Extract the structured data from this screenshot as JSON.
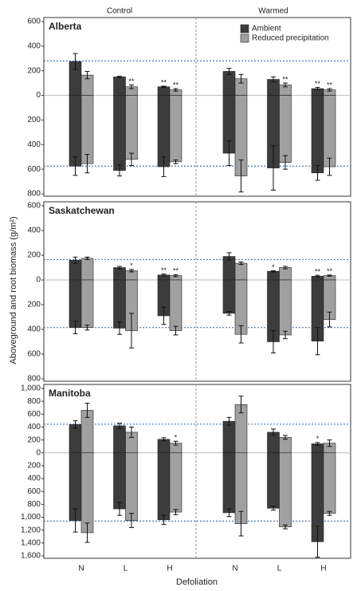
{
  "chart_data": {
    "type": "bar",
    "facets": [
      "Control",
      "Warmed"
    ],
    "categories": [
      "N",
      "L",
      "H"
    ],
    "xlabel": "Defoliation",
    "ylabel": "Aboveground  and root biomass (g/m²)",
    "legend_loc": "upper right",
    "series": [
      {
        "name": "Ambient",
        "color": "#3c3c3c"
      },
      {
        "name": "Reduced precipitation",
        "color": "#a0a0a0"
      }
    ],
    "ref_color": "#4a7ebb",
    "panels": [
      {
        "title": "Alberta",
        "ylim": [
          -800,
          600
        ],
        "yticks": [
          600,
          400,
          200,
          0,
          {
            "value": -200,
            "label": "200"
          },
          {
            "value": -400,
            "label": "400"
          },
          {
            "value": -600,
            "label": "600"
          },
          {
            "value": -800,
            "label": "800"
          }
        ],
        "ref_lines": [
          280,
          -575
        ],
        "values": [
          [
            {
              "above": [
                275,
                150,
                70
              ],
              "above_err": [
                65,
                5,
                5
              ],
              "root": [
                -575,
                -610,
                -580
              ],
              "root_err": [
                75,
                45,
                80
              ],
              "sig": [
                null,
                null,
                "**"
              ]
            },
            {
              "above": [
                165,
                70,
                45
              ],
              "above_err": [
                30,
                15,
                10
              ],
              "root": [
                -555,
                -520,
                -540
              ],
              "root_err": [
                75,
                50,
                15
              ],
              "sig": [
                null,
                "**",
                "**"
              ]
            }
          ],
          [
            {
              "above": [
                195,
                130,
                55
              ],
              "above_err": [
                25,
                20,
                10
              ],
              "root": [
                -470,
                -590,
                -630
              ],
              "root_err": [
                100,
                180,
                60
              ],
              "sig": [
                null,
                null,
                "**"
              ]
            },
            {
              "above": [
                135,
                85,
                45
              ],
              "above_err": [
                35,
                15,
                10
              ],
              "root": [
                -655,
                -545,
                -580
              ],
              "root_err": [
                130,
                55,
                70
              ],
              "sig": [
                null,
                "**",
                "**"
              ]
            }
          ]
        ]
      },
      {
        "title": "Saskatchewan",
        "ylim": [
          -800,
          600
        ],
        "yticks": [
          600,
          400,
          200,
          0,
          {
            "value": -200,
            "label": "200"
          },
          {
            "value": -400,
            "label": "400"
          },
          {
            "value": -600,
            "label": "600"
          },
          {
            "value": -800,
            "label": "800"
          }
        ],
        "ref_lines": [
          165,
          -385
        ],
        "values": [
          [
            {
              "above": [
                160,
                100,
                40
              ],
              "above_err": [
                25,
                10,
                8
              ],
              "root": [
                -385,
                -390,
                -290
              ],
              "root_err": [
                50,
                50,
                70
              ],
              "sig": [
                null,
                null,
                "**"
              ]
            },
            {
              "above": [
                175,
                75,
                35
              ],
              "above_err": [
                10,
                10,
                8
              ],
              "root": [
                -385,
                -410,
                -410
              ],
              "root_err": [
                20,
                140,
                35
              ],
              "sig": [
                null,
                "*",
                "**"
              ]
            }
          ],
          [
            {
              "above": [
                190,
                70,
                30
              ],
              "above_err": [
                30,
                5,
                8
              ],
              "root": [
                -270,
                -500,
                -495
              ],
              "root_err": [
                15,
                90,
                110
              ],
              "sig": [
                null,
                "*",
                "**"
              ]
            },
            {
              "above": [
                135,
                100,
                35
              ],
              "above_err": [
                10,
                10,
                5
              ],
              "root": [
                -440,
                -445,
                -320
              ],
              "root_err": [
                70,
                30,
                60
              ],
              "sig": [
                null,
                null,
                "**"
              ]
            }
          ]
        ]
      },
      {
        "title": "Manitoba",
        "ylim": [
          -1600,
          1000
        ],
        "yticks": [
          {
            "value": 1000,
            "label": "1,000"
          },
          800,
          600,
          400,
          200,
          0,
          {
            "value": -200,
            "label": "200"
          },
          {
            "value": -400,
            "label": "400"
          },
          {
            "value": -600,
            "label": "600"
          },
          {
            "value": -800,
            "label": "800"
          },
          {
            "value": -1000,
            "label": "1,000"
          },
          {
            "value": -1200,
            "label": "1,200"
          },
          {
            "value": -1400,
            "label": "1,400"
          },
          {
            "value": -1600,
            "label": "1,600"
          }
        ],
        "ref_lines": [
          445,
          -1060
        ],
        "values": [
          [
            {
              "above": [
                440,
                420,
                210
              ],
              "above_err": [
                60,
                40,
                25
              ],
              "root": [
                -1050,
                -870,
                -1040
              ],
              "root_err": [
                180,
                100,
                70
              ],
              "sig": [
                null,
                null,
                null
              ]
            },
            {
              "above": [
                660,
                320,
                150
              ],
              "above_err": [
                110,
                80,
                30
              ],
              "root": [
                -1240,
                -1050,
                -920
              ],
              "root_err": [
                150,
                110,
                40
              ],
              "sig": [
                null,
                null,
                "*"
              ]
            }
          ],
          [
            {
              "above": [
                490,
                320,
                140
              ],
              "above_err": [
                60,
                50,
                20
              ],
              "root": [
                -930,
                -860,
                -1380
              ],
              "root_err": [
                60,
                30,
                240
              ],
              "sig": [
                null,
                null,
                "*"
              ]
            },
            {
              "above": [
                750,
                240,
                150
              ],
              "above_err": [
                130,
                30,
                50
              ],
              "root": [
                -1100,
                -1150,
                -940
              ],
              "root_err": [
                190,
                30,
                30
              ],
              "sig": [
                null,
                null,
                null
              ]
            }
          ]
        ]
      }
    ]
  }
}
